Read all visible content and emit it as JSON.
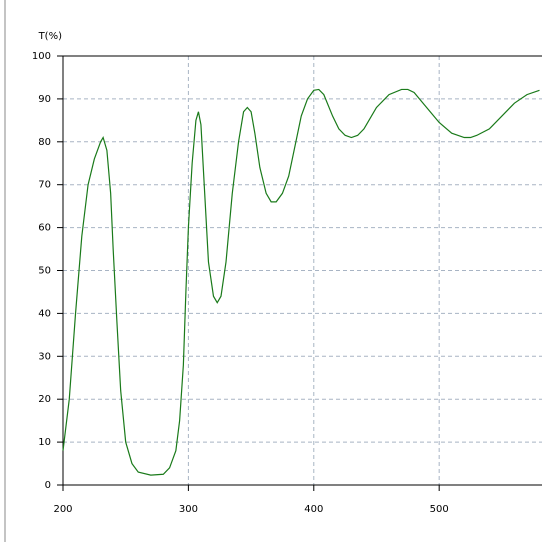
{
  "chart_data": {
    "type": "line",
    "y_label": "T(%)",
    "x": [
      200,
      205,
      210,
      215,
      220,
      225,
      230,
      232,
      235,
      238,
      240,
      243,
      246,
      250,
      255,
      260,
      270,
      280,
      285,
      290,
      293,
      296,
      298,
      300,
      303,
      306,
      308,
      310,
      313,
      316,
      320,
      323,
      326,
      330,
      335,
      340,
      344,
      347,
      350,
      353,
      357,
      362,
      366,
      370,
      375,
      380,
      385,
      390,
      395,
      400,
      404,
      408,
      415,
      420,
      425,
      430,
      435,
      440,
      450,
      460,
      470,
      475,
      480,
      490,
      500,
      510,
      520,
      525,
      530,
      540,
      550,
      560,
      570,
      580
    ],
    "series": [
      {
        "color": "#1a7a1a",
        "values": [
          8,
          20,
          40,
          58,
          70,
          76,
          80,
          81,
          78,
          68,
          55,
          38,
          22,
          10,
          5,
          3,
          2.3,
          2.5,
          4,
          8,
          15,
          28,
          45,
          60,
          75,
          85,
          87,
          84,
          68,
          52,
          44,
          42.5,
          44,
          52,
          68,
          80,
          87,
          88,
          87,
          82,
          74,
          68,
          66,
          66,
          68,
          72,
          79,
          86,
          90,
          92,
          92.2,
          91,
          86,
          83,
          81.5,
          81,
          81.5,
          83,
          88,
          91,
          92.2,
          92.2,
          91.5,
          88,
          84.5,
          82,
          81,
          81,
          81.5,
          83,
          86,
          89,
          91,
          92
        ]
      }
    ],
    "xlim": [
      200,
      582
    ],
    "ylim": [
      0,
      100
    ],
    "xticks": [
      200,
      300,
      400,
      500
    ],
    "yticks": [
      0,
      10,
      20,
      30,
      40,
      50,
      60,
      70,
      80,
      90,
      100
    ],
    "grid": true
  }
}
